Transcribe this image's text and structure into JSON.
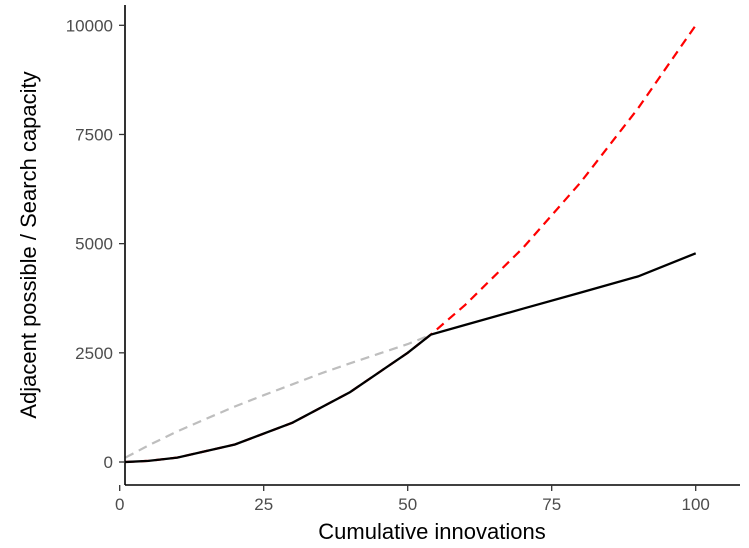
{
  "chart_data": {
    "type": "line",
    "title": "",
    "xlabel": "Cumulative innovations",
    "ylabel": "Adjacent possible / Search capacity",
    "xlim": [
      1,
      100
    ],
    "ylim": [
      0,
      10000
    ],
    "x_ticks": [
      0,
      25,
      50,
      75,
      100
    ],
    "y_ticks": [
      0,
      2500,
      5000,
      7500,
      10000
    ],
    "grid": false,
    "legend": "none",
    "series": [
      {
        "style": "dashed",
        "color": "#bebebe",
        "x": [
          1,
          5,
          10,
          15,
          20,
          25,
          30,
          35,
          40,
          45,
          50,
          54
        ],
        "y": [
          100,
          380,
          700,
          990,
          1270,
          1530,
          1780,
          2030,
          2260,
          2480,
          2700,
          2910
        ]
      },
      {
        "style": "dashed",
        "color": "#ff0000",
        "x": [
          1,
          5,
          10,
          20,
          30,
          40,
          50,
          54,
          60,
          70,
          80,
          90,
          100
        ],
        "y": [
          1,
          25,
          100,
          400,
          900,
          1600,
          2500,
          2916,
          3600,
          4900,
          6400,
          8100,
          10000
        ]
      },
      {
        "style": "solid",
        "color": "#000000",
        "x": [
          1,
          5,
          10,
          20,
          30,
          40,
          50,
          54,
          60,
          70,
          80,
          90,
          100
        ],
        "y": [
          1,
          25,
          100,
          400,
          900,
          1600,
          2500,
          2916,
          3140,
          3510,
          3880,
          4250,
          4780
        ]
      }
    ]
  }
}
